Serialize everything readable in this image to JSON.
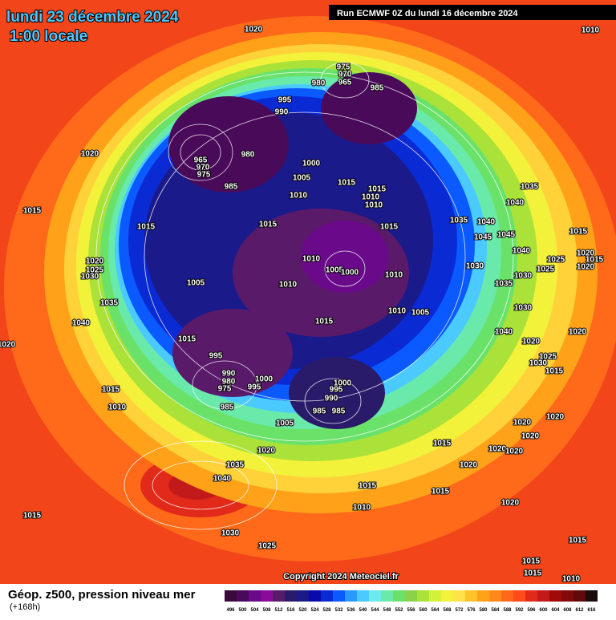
{
  "header": {
    "title": "lundi 23 décembre 2024",
    "time": "1:00 locale",
    "run": "Run ECMWF 0Z du lundi 16 décembre 2024"
  },
  "copyright": "Copyright 2024 Meteociel.fr",
  "legend": {
    "title": "Géop. z500, pression niveau mer",
    "subtitle": "(+168h)",
    "levels": [
      496,
      500,
      504,
      508,
      512,
      516,
      520,
      524,
      528,
      532,
      536,
      540,
      544,
      548,
      552,
      556,
      560,
      564,
      568,
      572,
      576,
      580,
      584,
      588,
      592,
      596,
      600,
      604,
      608,
      612,
      616
    ],
    "colors": [
      "#3a0a3a",
      "#4a0a5a",
      "#6a0a8a",
      "#8a0a9a",
      "#5a1a6a",
      "#2a1a6a",
      "#1a1a8a",
      "#0a0aaa",
      "#0a2ad4",
      "#0a5aff",
      "#2a9aff",
      "#4acaff",
      "#6aeaea",
      "#6aeaaa",
      "#6ae26a",
      "#8ad24a",
      "#aae23a",
      "#d2f23a",
      "#f2f23a",
      "#ffe24a",
      "#ffc22a",
      "#ffa21a",
      "#ff8a1a",
      "#ff6a1a",
      "#ff4a1a",
      "#e22a1a",
      "#c21a1a",
      "#a20a0a",
      "#820a0a",
      "#620a0a",
      "#1a0a0a"
    ]
  },
  "isobar_labels": [
    1020,
    1010,
    975,
    970,
    965,
    980,
    985,
    995,
    990,
    1020,
    965,
    970,
    975,
    980,
    1000,
    1005,
    985,
    1010,
    1015,
    1015,
    1010,
    1010,
    1035,
    1040,
    1015,
    1015,
    1015,
    1015,
    1035,
    1040,
    1045,
    1045,
    1040,
    1015,
    1010,
    1005,
    1000,
    1010,
    1010,
    1005,
    1020,
    1025,
    1030,
    1035,
    1040,
    1010,
    1005,
    1015,
    1015,
    995,
    1030,
    1030,
    1040,
    1020,
    1020,
    1025,
    1030,
    1015,
    1020,
    990,
    980,
    975,
    1000,
    995,
    1000,
    995,
    990,
    985,
    985,
    1015,
    1010,
    985,
    1005,
    1015,
    1020,
    1020,
    1020,
    1020,
    1020,
    1020,
    1020,
    1035,
    1040,
    1015,
    1015,
    1010,
    1020,
    1015,
    1030,
    1025,
    1015,
    1015,
    1015,
    1010,
    1030,
    1035,
    1025,
    1020,
    1015,
    1020,
    1025
  ]
}
